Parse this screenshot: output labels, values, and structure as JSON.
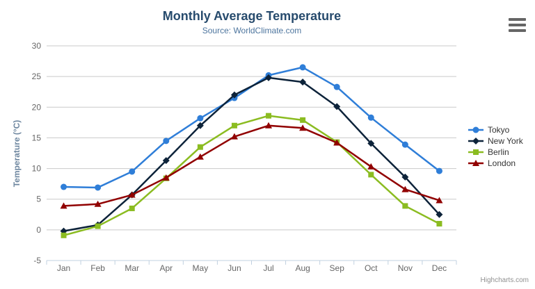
{
  "chart_data": {
    "type": "line",
    "title": "Monthly Average Temperature",
    "subtitle": "Source: WorldClimate.com",
    "categories": [
      "Jan",
      "Feb",
      "Mar",
      "Apr",
      "May",
      "Jun",
      "Jul",
      "Aug",
      "Sep",
      "Oct",
      "Nov",
      "Dec"
    ],
    "xlabel": "",
    "ylabel": "Temperature (°C)",
    "ylim": [
      -5,
      30
    ],
    "ytick_step": 5,
    "grid": true,
    "legend_position": "right",
    "series": [
      {
        "name": "Tokyo",
        "color": "#2f7ed8",
        "marker": "circle",
        "values": [
          7.0,
          6.9,
          9.5,
          14.5,
          18.2,
          21.5,
          25.2,
          26.5,
          23.3,
          18.3,
          13.9,
          9.6
        ]
      },
      {
        "name": "New York",
        "color": "#0d233a",
        "marker": "diamond",
        "values": [
          -0.2,
          0.8,
          5.7,
          11.3,
          17.0,
          22.0,
          24.8,
          24.1,
          20.1,
          14.1,
          8.6,
          2.5
        ]
      },
      {
        "name": "Berlin",
        "color": "#8bbc21",
        "marker": "square",
        "values": [
          -0.9,
          0.6,
          3.5,
          8.4,
          13.5,
          17.0,
          18.6,
          17.9,
          14.3,
          9.0,
          3.9,
          1.0
        ]
      },
      {
        "name": "London",
        "color": "#910000",
        "marker": "triangle",
        "values": [
          3.9,
          4.2,
          5.7,
          8.5,
          11.9,
          15.2,
          17.0,
          16.6,
          14.2,
          10.3,
          6.6,
          4.8
        ]
      }
    ],
    "credits": "Highcharts.com"
  },
  "theme": {
    "title_color": "#274b6d",
    "subtitle_color": "#4d759e",
    "axis_label_color": "#666666",
    "yaxis_title_color": "#6d869f",
    "grid_color": "#c9c9c9",
    "axis_line_color": "#c0d0e0",
    "legend_text_color": "#333333",
    "credits_color": "#909090",
    "menu_icon_color": "#666666",
    "background": "#ffffff"
  }
}
